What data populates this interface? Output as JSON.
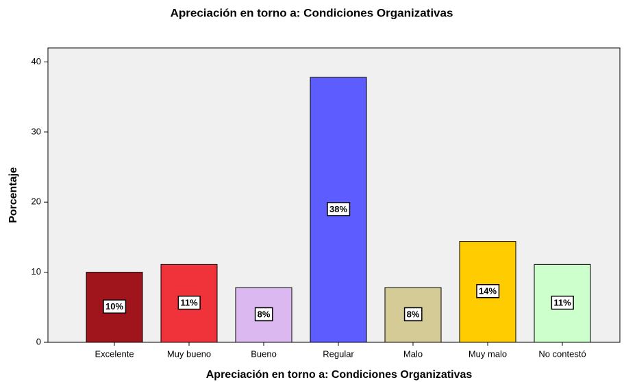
{
  "chart_data": {
    "type": "bar",
    "title": "Apreciación en torno a: Condiciones Organizativas",
    "x_label": "Apreciación en torno a: Condiciones Organizativas",
    "y_label": "Porcentaje",
    "categories": [
      "Excelente",
      "Muy bueno",
      "Bueno",
      "Regular",
      "Malo",
      "Muy malo",
      "No contestó"
    ],
    "values": [
      10,
      11.1,
      7.8,
      37.8,
      7.8,
      14.4,
      11.1
    ],
    "value_labels": [
      "10%",
      "11%",
      "8%",
      "38%",
      "8%",
      "14%",
      "11%"
    ],
    "colors": [
      "#a0151c",
      "#f0333b",
      "#dcb8f0",
      "#5c5cff",
      "#d5cb96",
      "#ffcc00",
      "#ccffcc"
    ],
    "ylim": [
      0,
      42
    ],
    "yticks": [
      0,
      10,
      20,
      30,
      40
    ],
    "grid": false
  }
}
